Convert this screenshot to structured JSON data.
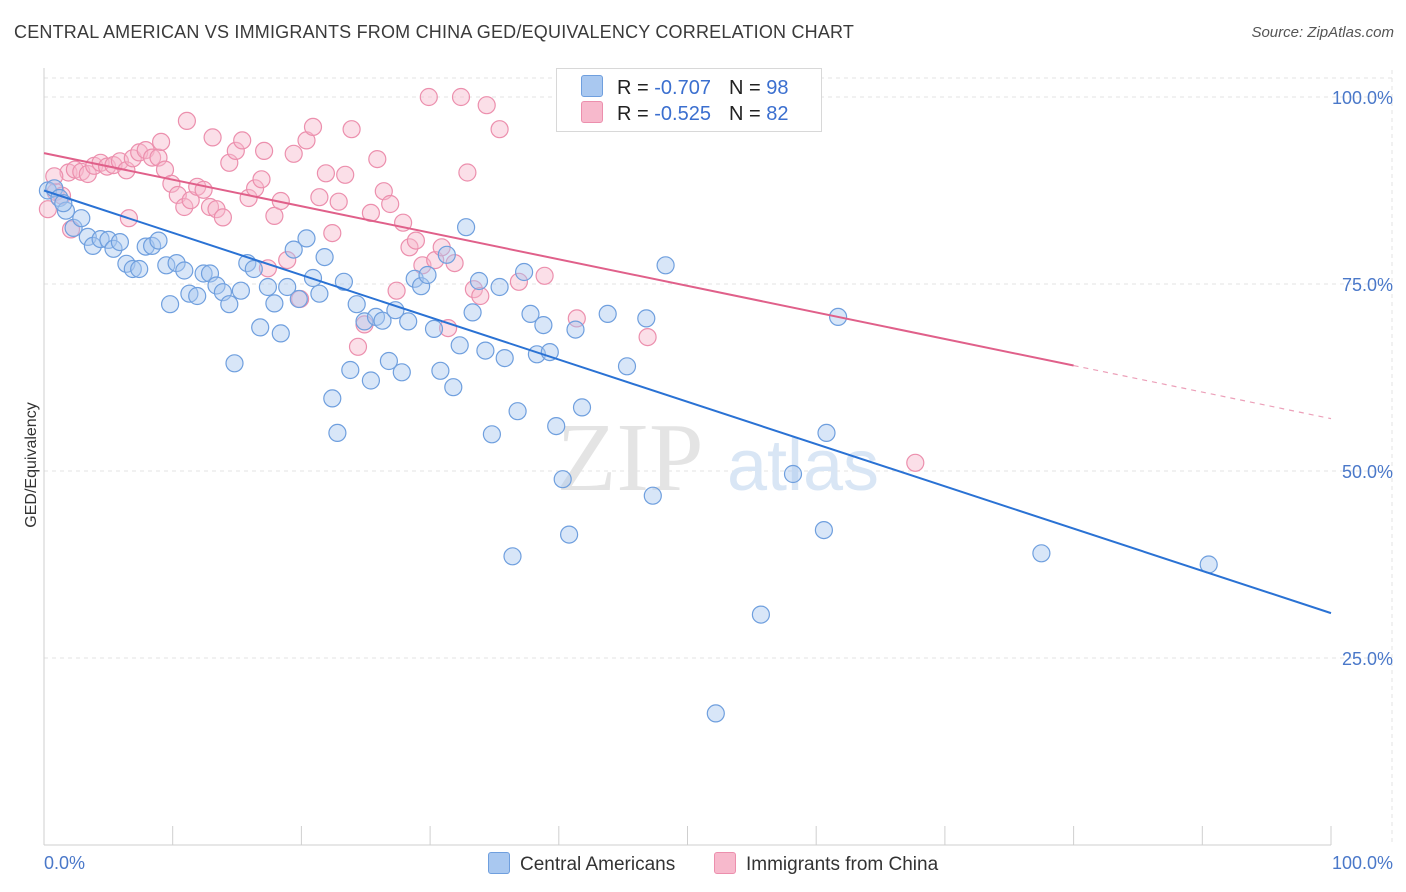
{
  "header": {
    "title": "CENTRAL AMERICAN VS IMMIGRANTS FROM CHINA GED/EQUIVALENCY CORRELATION CHART",
    "source": "Source: ZipAtlas.com"
  },
  "legend": {
    "r_label": "R =",
    "n_label": "N =",
    "series": [
      {
        "name": "Central Americans",
        "r": "-0.707",
        "n": "98"
      },
      {
        "name": "Immigrants from China",
        "r": "-0.525",
        "n": "82"
      }
    ]
  },
  "watermark": {
    "zip": "ZIP",
    "atlas": "atlas"
  },
  "colors": {
    "blue_fill": "#a9c8f0",
    "blue_stroke": "#6f9fde",
    "blue_line": "#2a72d4",
    "pink_fill": "#f7b9cc",
    "pink_stroke": "#ec8fad",
    "pink_line": "#e0608a",
    "grid": "#e3e3e3",
    "tick_text": "#4a78c9"
  },
  "chart_data": {
    "type": "scatter",
    "title": "CENTRAL AMERICAN VS IMMIGRANTS FROM CHINA GED/EQUIVALENCY CORRELATION CHART",
    "xlabel": "",
    "ylabel": "GED/Equivalency",
    "xlim": [
      0,
      100
    ],
    "ylim": [
      0,
      102
    ],
    "x_tick_labels": [
      "0.0%",
      "100.0%"
    ],
    "y_ticks": [
      25,
      50,
      75,
      100
    ],
    "y_tick_labels": [
      "25.0%",
      "50.0%",
      "75.0%",
      "100.0%"
    ],
    "grid": true,
    "series": [
      {
        "name": "Central Americans",
        "r": -0.707,
        "n": 98,
        "trend": {
          "x0": 0,
          "y0": 87.5,
          "x1": 100,
          "y1": 31.0,
          "solid_until": 100
        },
        "points": [
          [
            0.3,
            87.5
          ],
          [
            0.8,
            87.8
          ],
          [
            1.2,
            86.5
          ],
          [
            1.7,
            84.8
          ],
          [
            2.3,
            82.5
          ],
          [
            2.9,
            83.8
          ],
          [
            3.4,
            81.3
          ],
          [
            3.8,
            80.1
          ],
          [
            4.4,
            81.0
          ],
          [
            5.0,
            80.9
          ],
          [
            5.4,
            79.7
          ],
          [
            5.9,
            80.6
          ],
          [
            6.4,
            77.7
          ],
          [
            6.9,
            77.0
          ],
          [
            7.4,
            77.0
          ],
          [
            7.9,
            80.0
          ],
          [
            8.4,
            80.1
          ],
          [
            8.9,
            80.8
          ],
          [
            9.5,
            77.5
          ],
          [
            9.8,
            72.3
          ],
          [
            10.3,
            77.8
          ],
          [
            10.9,
            76.8
          ],
          [
            11.3,
            73.7
          ],
          [
            11.9,
            73.4
          ],
          [
            12.4,
            76.4
          ],
          [
            12.9,
            76.4
          ],
          [
            13.4,
            74.8
          ],
          [
            13.9,
            73.9
          ],
          [
            14.4,
            72.3
          ],
          [
            14.8,
            64.4
          ],
          [
            15.3,
            74.1
          ],
          [
            15.8,
            77.8
          ],
          [
            16.3,
            77.0
          ],
          [
            16.8,
            69.2
          ],
          [
            17.4,
            74.6
          ],
          [
            17.9,
            72.4
          ],
          [
            18.4,
            68.4
          ],
          [
            18.9,
            74.6
          ],
          [
            19.4,
            79.6
          ],
          [
            19.8,
            73.0
          ],
          [
            20.4,
            81.1
          ],
          [
            20.9,
            75.8
          ],
          [
            21.4,
            73.7
          ],
          [
            21.8,
            78.6
          ],
          [
            22.4,
            59.7
          ],
          [
            22.8,
            55.1
          ],
          [
            23.3,
            75.3
          ],
          [
            23.8,
            63.5
          ],
          [
            24.3,
            72.3
          ],
          [
            24.9,
            70.0
          ],
          [
            25.4,
            62.1
          ],
          [
            25.8,
            70.6
          ],
          [
            26.3,
            70.1
          ],
          [
            26.8,
            64.7
          ],
          [
            27.3,
            71.5
          ],
          [
            27.8,
            63.2
          ],
          [
            28.3,
            70.0
          ],
          [
            28.8,
            75.7
          ],
          [
            29.3,
            74.7
          ],
          [
            29.8,
            76.2
          ],
          [
            30.3,
            69.0
          ],
          [
            30.8,
            63.4
          ],
          [
            31.3,
            78.9
          ],
          [
            31.8,
            61.2
          ],
          [
            32.3,
            66.8
          ],
          [
            32.8,
            82.6
          ],
          [
            33.3,
            71.2
          ],
          [
            33.8,
            75.4
          ],
          [
            34.3,
            66.1
          ],
          [
            34.8,
            54.9
          ],
          [
            35.4,
            74.6
          ],
          [
            35.8,
            65.1
          ],
          [
            36.4,
            38.6
          ],
          [
            36.8,
            58.0
          ],
          [
            37.3,
            76.6
          ],
          [
            37.8,
            71.0
          ],
          [
            38.3,
            65.6
          ],
          [
            38.8,
            69.5
          ],
          [
            39.3,
            65.9
          ],
          [
            39.8,
            56.0
          ],
          [
            40.3,
            48.9
          ],
          [
            40.8,
            41.5
          ],
          [
            41.3,
            68.9
          ],
          [
            41.8,
            58.5
          ],
          [
            43.8,
            71.0
          ],
          [
            45.3,
            64.0
          ],
          [
            46.8,
            70.4
          ],
          [
            47.3,
            46.7
          ],
          [
            48.3,
            77.5
          ],
          [
            52.2,
            17.6
          ],
          [
            55.7,
            30.8
          ],
          [
            58.2,
            49.6
          ],
          [
            60.6,
            42.1
          ],
          [
            60.8,
            55.1
          ],
          [
            61.7,
            70.6
          ],
          [
            77.5,
            39.0
          ],
          [
            90.5,
            37.5
          ],
          [
            1.5,
            85.8
          ]
        ]
      },
      {
        "name": "Immigrants from China",
        "r": -0.525,
        "n": 82,
        "trend": {
          "x0": 0,
          "y0": 92.5,
          "x1": 100,
          "y1": 57.0,
          "solid_until": 80
        },
        "points": [
          [
            0.3,
            85.0
          ],
          [
            0.9,
            87.3
          ],
          [
            1.4,
            86.8
          ],
          [
            1.9,
            89.9
          ],
          [
            2.4,
            90.3
          ],
          [
            2.9,
            90.0
          ],
          [
            3.4,
            89.7
          ],
          [
            3.9,
            90.8
          ],
          [
            4.4,
            91.2
          ],
          [
            4.9,
            90.7
          ],
          [
            5.4,
            90.9
          ],
          [
            5.9,
            91.4
          ],
          [
            6.4,
            90.2
          ],
          [
            6.9,
            91.8
          ],
          [
            7.4,
            92.6
          ],
          [
            7.9,
            92.9
          ],
          [
            8.4,
            91.9
          ],
          [
            8.9,
            91.9
          ],
          [
            9.4,
            90.3
          ],
          [
            9.9,
            88.4
          ],
          [
            10.4,
            86.9
          ],
          [
            10.9,
            85.3
          ],
          [
            11.4,
            86.2
          ],
          [
            11.9,
            88.0
          ],
          [
            12.4,
            87.6
          ],
          [
            12.9,
            85.3
          ],
          [
            13.4,
            85.0
          ],
          [
            13.9,
            83.9
          ],
          [
            14.4,
            91.2
          ],
          [
            14.9,
            92.8
          ],
          [
            15.4,
            94.2
          ],
          [
            15.9,
            86.5
          ],
          [
            16.4,
            87.8
          ],
          [
            16.9,
            89.0
          ],
          [
            17.4,
            77.1
          ],
          [
            17.9,
            84.1
          ],
          [
            18.4,
            86.1
          ],
          [
            18.9,
            78.2
          ],
          [
            19.4,
            92.4
          ],
          [
            19.9,
            73.0
          ],
          [
            20.4,
            94.2
          ],
          [
            20.9,
            96.0
          ],
          [
            21.4,
            86.6
          ],
          [
            21.9,
            89.8
          ],
          [
            22.4,
            81.8
          ],
          [
            22.9,
            86.0
          ],
          [
            23.4,
            89.6
          ],
          [
            23.9,
            95.7
          ],
          [
            24.4,
            66.6
          ],
          [
            24.9,
            69.6
          ],
          [
            25.4,
            84.5
          ],
          [
            25.9,
            91.7
          ],
          [
            26.4,
            87.4
          ],
          [
            26.9,
            85.7
          ],
          [
            27.4,
            74.1
          ],
          [
            27.9,
            83.2
          ],
          [
            28.4,
            79.9
          ],
          [
            28.9,
            80.8
          ],
          [
            29.4,
            77.5
          ],
          [
            29.9,
            100.0
          ],
          [
            30.4,
            78.2
          ],
          [
            30.9,
            79.9
          ],
          [
            31.4,
            69.1
          ],
          [
            31.9,
            77.8
          ],
          [
            32.4,
            100.0
          ],
          [
            32.9,
            89.9
          ],
          [
            33.4,
            74.3
          ],
          [
            33.9,
            73.4
          ],
          [
            34.4,
            98.9
          ],
          [
            35.4,
            95.7
          ],
          [
            36.9,
            75.3
          ],
          [
            38.9,
            76.1
          ],
          [
            41.4,
            70.4
          ],
          [
            46.9,
            67.9
          ],
          [
            67.7,
            51.1
          ],
          [
            0.8,
            89.4
          ],
          [
            2.1,
            82.3
          ],
          [
            6.6,
            83.8
          ],
          [
            9.1,
            94.0
          ],
          [
            11.1,
            96.8
          ],
          [
            13.1,
            94.6
          ],
          [
            17.1,
            92.8
          ]
        ]
      }
    ]
  }
}
